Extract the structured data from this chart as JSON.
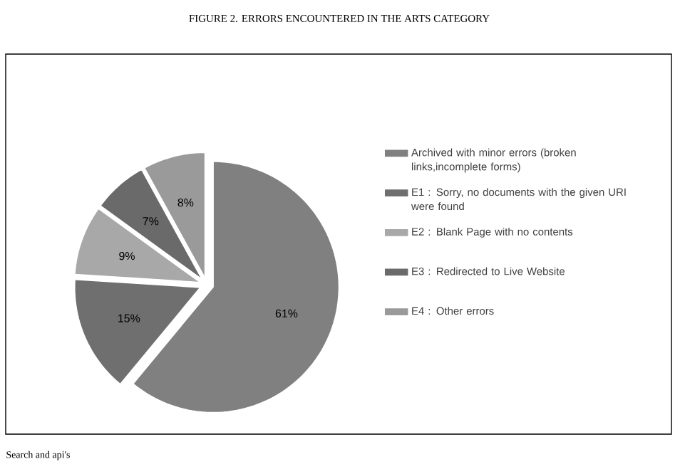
{
  "chart_data": {
    "type": "pie",
    "title": "FIGURE 2. ERRORS ENCOUNTERED IN THE ARTS CATEGORY",
    "categories": [
      "Archived with minor errors (broken links,incomplete forms)",
      "E1 : Sorry, no documents with the given URI were found",
      "E2 : Blank Page with no contents",
      "E3 : Redirected to Live Website",
      "E4 : Other errors"
    ],
    "values": [
      61,
      15,
      9,
      7,
      8
    ],
    "value_labels": [
      "61%",
      "15%",
      "9%",
      "7%",
      "8%"
    ],
    "colors": [
      "#808080",
      "#6f6f6f",
      "#a8a8a8",
      "#6a6a6a",
      "#9a9a9a"
    ],
    "legend": "right",
    "annotations": [
      "Search and api's"
    ]
  }
}
